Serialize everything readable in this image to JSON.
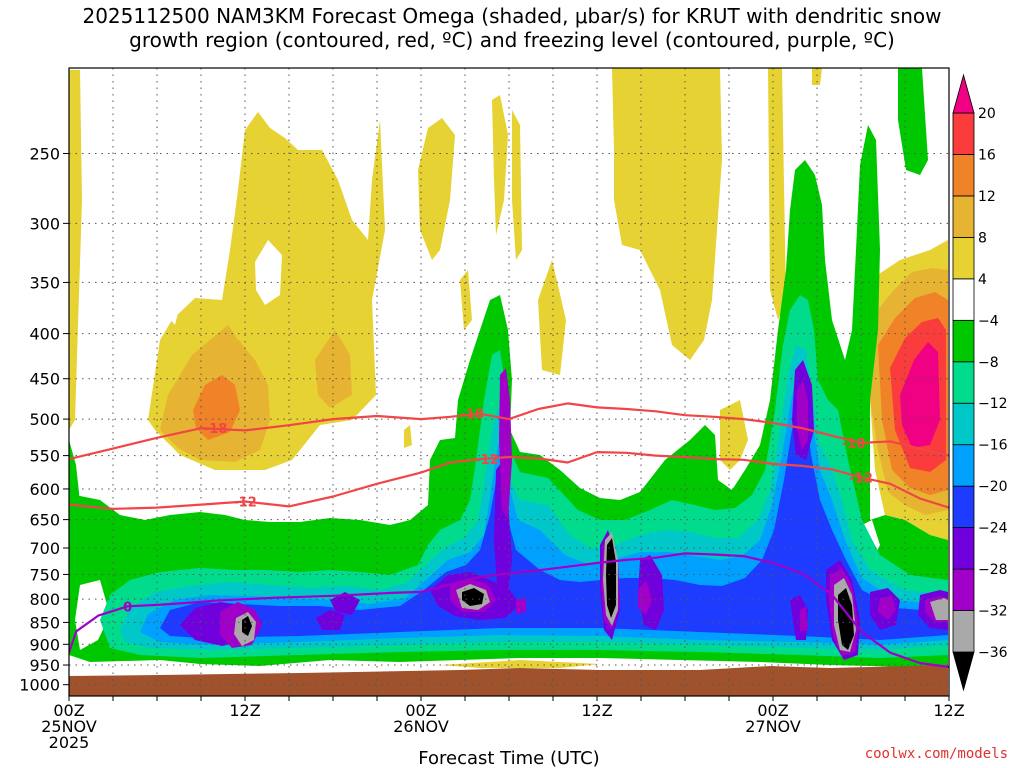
{
  "title": {
    "line1": "2025112500 NAM3KM Forecast Omega (shaded, μbar/s) for KRUT with dendritic snow",
    "line2": "growth region (contoured, red, ºC) and freezing level (contoured, purple, ºC)"
  },
  "credit": "coolwx.com/models",
  "chart_data": {
    "type": "heatmap",
    "x_axis": {
      "label": "Forecast Time (UTC)",
      "range_hours": [
        0,
        60
      ],
      "ticks": [
        {
          "hour": 0,
          "line1": "00Z",
          "line2": "25NOV",
          "line3": "2025"
        },
        {
          "hour": 12,
          "line1": "12Z",
          "line2": "",
          "line3": ""
        },
        {
          "hour": 24,
          "line1": "00Z",
          "line2": "26NOV",
          "line3": ""
        },
        {
          "hour": 36,
          "line1": "12Z",
          "line2": "",
          "line3": ""
        },
        {
          "hour": 48,
          "line1": "00Z",
          "line2": "27NOV",
          "line3": ""
        },
        {
          "hour": 60,
          "line1": "12Z",
          "line2": "",
          "line3": ""
        }
      ]
    },
    "y_axis": {
      "label": "",
      "scale": "log-pressure",
      "range_mb": [
        1030,
        200
      ],
      "ticks": [
        1000,
        950,
        900,
        850,
        800,
        750,
        700,
        650,
        600,
        550,
        500,
        450,
        400,
        350,
        300,
        250
      ]
    },
    "colorbar": {
      "levels": [
        -36,
        -32,
        -28,
        -24,
        -20,
        -16,
        -12,
        -8,
        -4,
        4,
        8,
        12,
        16,
        20
      ],
      "colors": [
        "#000000",
        "#a9a9a9",
        "#a000c8",
        "#7000dc",
        "#1e3cff",
        "#00a0ff",
        "#00c8c8",
        "#00dc8c",
        "#00c800",
        "#ffffff",
        "#e6d232",
        "#e6b432",
        "#f08228",
        "#fa3c3c",
        "#f00082"
      ]
    },
    "colors": {
      "ground": "#a0522d",
      "isotherm": "#f04646",
      "freezing_level": "#a000c8"
    },
    "contours": [
      {
        "label": "-18",
        "color": "#f04646",
        "x": [
          0,
          3,
          6,
          9,
          12,
          15,
          18,
          21,
          24,
          26,
          28,
          30,
          32,
          34,
          36,
          38,
          40,
          42,
          44,
          46,
          48,
          50,
          52,
          54,
          56,
          58,
          60
        ],
        "y": [
          555,
          540,
          525,
          512,
          515,
          508,
          500,
          496,
          500,
          497,
          493,
          500,
          487,
          480,
          485,
          487,
          490,
          495,
          497,
          500,
          505,
          512,
          522,
          532,
          530,
          540,
          550
        ]
      },
      {
        "label": "-12",
        "color": "#f04646",
        "x": [
          0,
          3,
          6,
          9,
          12,
          15,
          18,
          21,
          24,
          26,
          28,
          30,
          32,
          34,
          36,
          38,
          40,
          42,
          44,
          46,
          48,
          50,
          52,
          54,
          56,
          58,
          60
        ],
        "y": [
          625,
          632,
          630,
          625,
          620,
          628,
          612,
          592,
          575,
          560,
          555,
          552,
          554,
          560,
          545,
          546,
          550,
          552,
          555,
          556,
          562,
          565,
          570,
          582,
          592,
          615,
          630
        ]
      },
      {
        "label": "0",
        "color": "#a000c8",
        "x": [
          0,
          0.5,
          2,
          4,
          6,
          8,
          10,
          12,
          14,
          16,
          18,
          20,
          22,
          24,
          26,
          28,
          30,
          32,
          34,
          36,
          38,
          40,
          42,
          44,
          46,
          48,
          50,
          52,
          54,
          56,
          58,
          60
        ],
        "y": [
          920,
          870,
          835,
          815,
          812,
          808,
          803,
          800,
          797,
          795,
          793,
          790,
          787,
          785,
          770,
          755,
          748,
          742,
          735,
          728,
          722,
          718,
          710,
          712,
          715,
          728,
          748,
          790,
          870,
          920,
          945,
          955
        ]
      }
    ]
  }
}
